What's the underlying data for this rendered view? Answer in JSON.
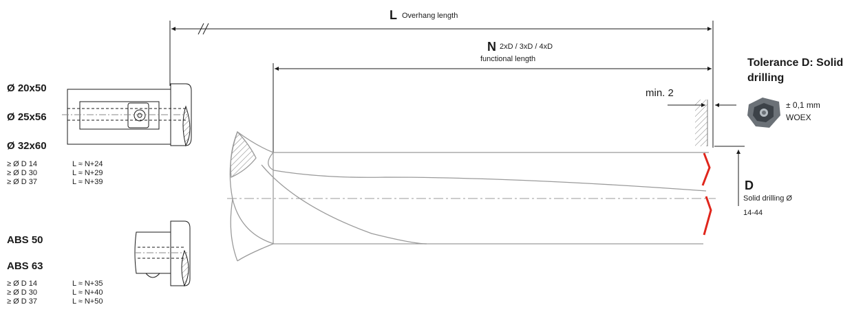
{
  "left_panel": {
    "sizes_1": [
      "Ø 20x50",
      "Ø 25x56",
      "Ø 32x60"
    ],
    "table_1": [
      {
        "dia": "≥ Ø D 14",
        "len": "L ≈ N+24"
      },
      {
        "dia": "≥ Ø D 30",
        "len": "L ≈ N+29"
      },
      {
        "dia": "≥ Ø D 37",
        "len": "L ≈ N+39"
      }
    ],
    "sizes_2": [
      "ABS 50",
      "ABS 63"
    ],
    "table_2": [
      {
        "dia": "≥ Ø D 14",
        "len": "L ≈ N+35"
      },
      {
        "dia": "≥ Ø D 30",
        "len": "L ≈ N+40"
      },
      {
        "dia": "≥ Ø D 37",
        "len": "L ≈ N+50"
      }
    ]
  },
  "dimensions": {
    "L": {
      "letter": "L",
      "text": "Overhang length"
    },
    "N": {
      "letter": "N",
      "text_1": "2xD / 3xD / 4xD",
      "text_2": "functional length"
    },
    "min": "min. 2",
    "D": {
      "letter": "D",
      "text_1": "Solid drilling Ø",
      "text_2": "14-44"
    }
  },
  "tolerance": {
    "title_1": "Tolerance D: Solid",
    "title_2": "drilling",
    "value": "± 0,1 mm",
    "insert": "WOEX"
  },
  "colors": {
    "line": "#1a1a1a",
    "drill": "#9a9a9a",
    "edge": "#e0261c",
    "insert": "#6b7177"
  }
}
